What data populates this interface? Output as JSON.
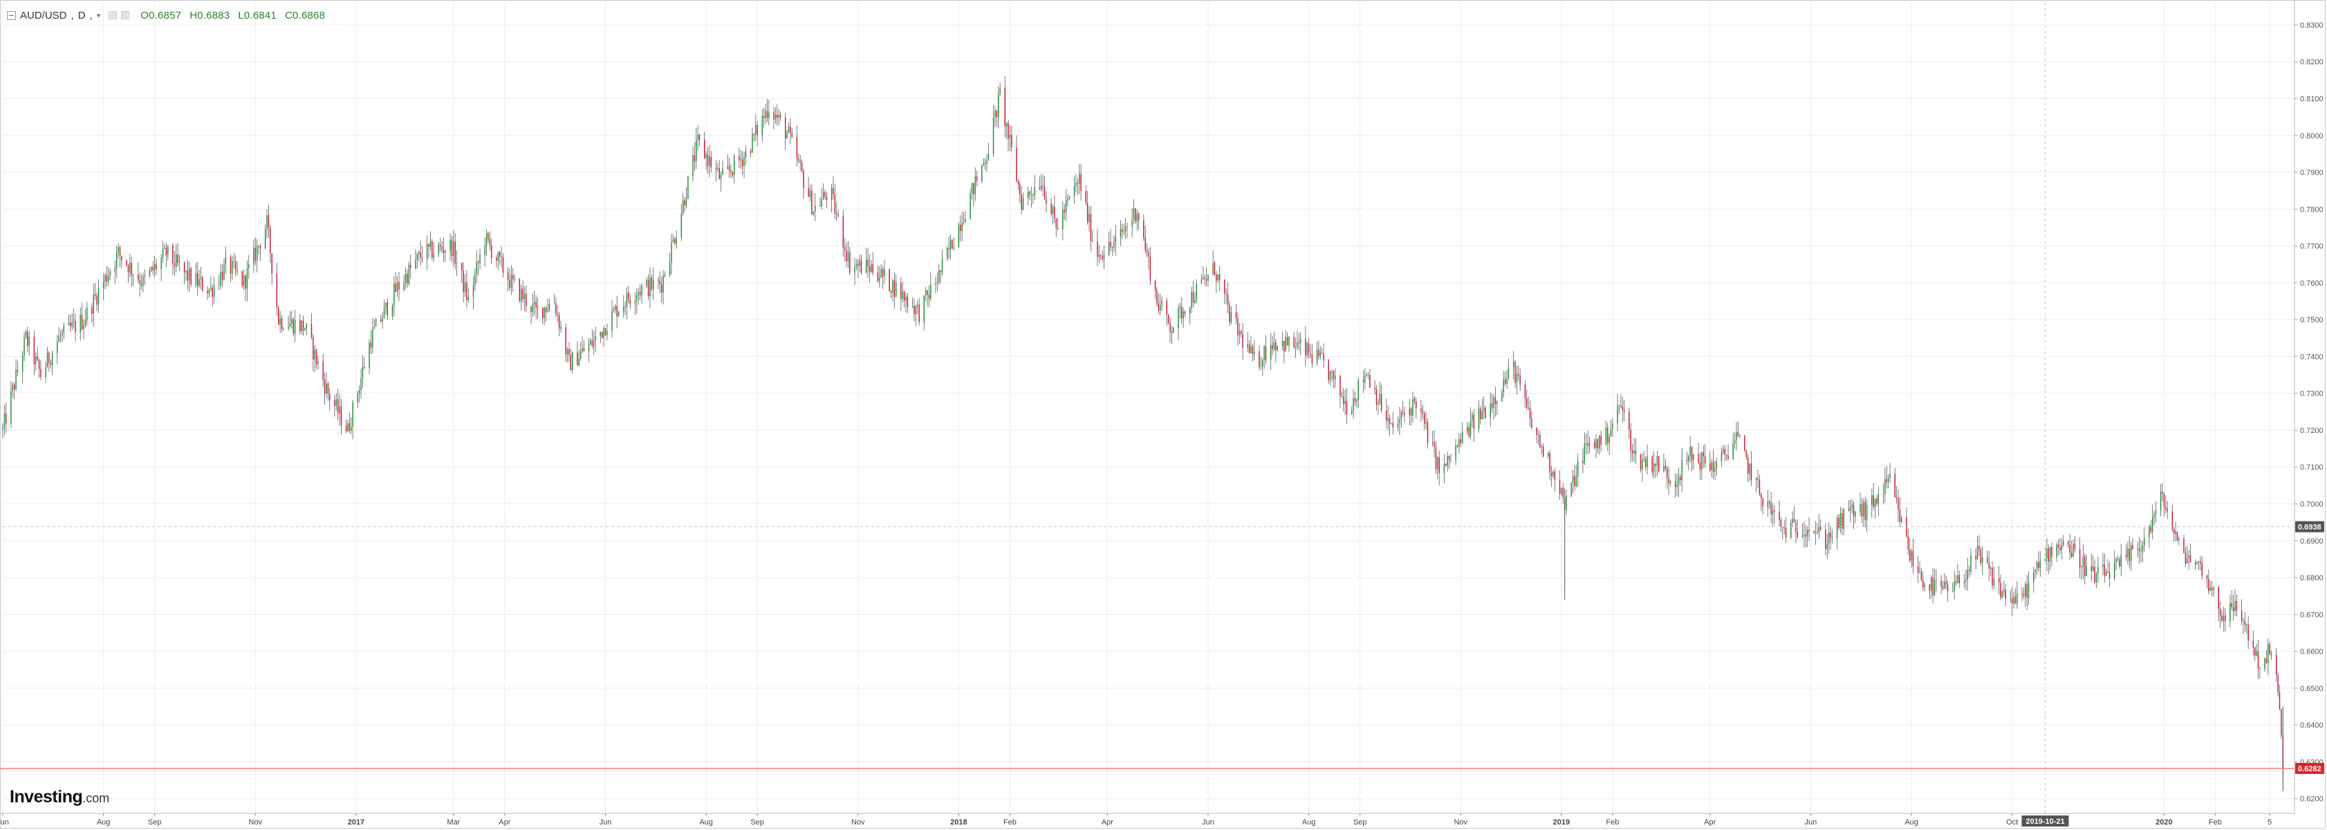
{
  "instrument": {
    "symbol": "AUD/USD",
    "interval": "D",
    "open_label": "O",
    "open": "0.6857",
    "high_label": "H",
    "high": "0.6883",
    "low_label": "L",
    "low": "0.6841",
    "close_label": "C",
    "close": "0.6868"
  },
  "logo": {
    "brand": "Investing",
    "suffix": ".com"
  },
  "colors": {
    "up": "#1b8a2e",
    "down": "#c8102e",
    "wick": "#555555",
    "grid": "#ececec",
    "price_line": "#ff5c5c",
    "crosshair": "#c8c8c8",
    "current_price_bg": "#e02424",
    "crosshair_label_bg": "#555555"
  },
  "chart_data": {
    "type": "candlestick",
    "title": "AUD/USD, D",
    "ylim": [
      0.616,
      0.836
    ],
    "y_ticks": [
      "0.8300",
      "0.8200",
      "0.8100",
      "0.8000",
      "0.7900",
      "0.7800",
      "0.7700",
      "0.7600",
      "0.7500",
      "0.7400",
      "0.7300",
      "0.7200",
      "0.7100",
      "0.7000",
      "0.6900",
      "0.6800",
      "0.6700",
      "0.6600",
      "0.6500",
      "0.6400",
      "0.6300",
      "0.6200"
    ],
    "x_ticks": [
      "Jun",
      "Aug",
      "Sep",
      "Nov",
      "2017",
      "Mar",
      "Apr",
      "Jun",
      "Aug",
      "Sep",
      "Nov",
      "2018",
      "Feb",
      "Apr",
      "Jun",
      "Aug",
      "Sep",
      "Nov",
      "2019",
      "Feb",
      "Apr",
      "Jun",
      "Aug",
      "Oct",
      "2020",
      "Feb",
      "5"
    ],
    "x_tick_dates": [
      "2016-06-01",
      "2016-08-01",
      "2016-09-01",
      "2016-11-01",
      "2017-01-01",
      "2017-03-01",
      "2017-04-01",
      "2017-06-01",
      "2017-08-01",
      "2017-09-01",
      "2017-11-01",
      "2018-01-01",
      "2018-02-01",
      "2018-04-01",
      "2018-06-01",
      "2018-08-01",
      "2018-09-01",
      "2018-11-01",
      "2019-01-01",
      "2019-02-01",
      "2019-04-01",
      "2019-06-01",
      "2019-08-01",
      "2019-10-01",
      "2020-01-01",
      "2020-02-01",
      "2020-03-05"
    ],
    "x_range": [
      "2016-06-01",
      "2020-03-20"
    ],
    "current_price_label": "0.6282",
    "current_price": 0.6282,
    "crosshair_price_label": "0.6938",
    "crosshair_price": 0.6938,
    "crosshair_date_label": "2019-10-21",
    "crosshair_date": "2019-10-21",
    "grid": true,
    "price_path": [
      [
        "2016-06-01",
        0.72
      ],
      [
        "2016-06-15",
        0.745
      ],
      [
        "2016-06-24",
        0.735
      ],
      [
        "2016-07-05",
        0.745
      ],
      [
        "2016-07-20",
        0.75
      ],
      [
        "2016-08-10",
        0.768
      ],
      [
        "2016-08-25",
        0.76
      ],
      [
        "2016-09-08",
        0.768
      ],
      [
        "2016-09-20",
        0.762
      ],
      [
        "2016-10-05",
        0.758
      ],
      [
        "2016-10-15",
        0.765
      ],
      [
        "2016-10-25",
        0.76
      ],
      [
        "2016-11-08",
        0.776
      ],
      [
        "2016-11-15",
        0.75
      ],
      [
        "2016-12-01",
        0.748
      ],
      [
        "2016-12-15",
        0.73
      ],
      [
        "2016-12-27",
        0.72
      ],
      [
        "2017-01-10",
        0.745
      ],
      [
        "2017-01-25",
        0.758
      ],
      [
        "2017-02-10",
        0.768
      ],
      [
        "2017-02-28",
        0.77
      ],
      [
        "2017-03-10",
        0.755
      ],
      [
        "2017-03-20",
        0.772
      ],
      [
        "2017-04-05",
        0.76
      ],
      [
        "2017-04-20",
        0.752
      ],
      [
        "2017-05-01",
        0.755
      ],
      [
        "2017-05-10",
        0.738
      ],
      [
        "2017-05-25",
        0.744
      ],
      [
        "2017-06-08",
        0.753
      ],
      [
        "2017-06-20",
        0.758
      ],
      [
        "2017-07-05",
        0.76
      ],
      [
        "2017-07-15",
        0.776
      ],
      [
        "2017-07-27",
        0.798
      ],
      [
        "2017-08-10",
        0.788
      ],
      [
        "2017-08-25",
        0.795
      ],
      [
        "2017-09-08",
        0.808
      ],
      [
        "2017-09-20",
        0.8
      ],
      [
        "2017-10-05",
        0.78
      ],
      [
        "2017-10-15",
        0.785
      ],
      [
        "2017-10-27",
        0.765
      ],
      [
        "2017-11-10",
        0.764
      ],
      [
        "2017-11-25",
        0.758
      ],
      [
        "2017-12-08",
        0.752
      ],
      [
        "2017-12-20",
        0.762
      ],
      [
        "2018-01-05",
        0.78
      ],
      [
        "2018-01-18",
        0.795
      ],
      [
        "2018-01-26",
        0.811
      ],
      [
        "2018-02-08",
        0.782
      ],
      [
        "2018-02-20",
        0.788
      ],
      [
        "2018-03-01",
        0.775
      ],
      [
        "2018-03-15",
        0.788
      ],
      [
        "2018-03-25",
        0.768
      ],
      [
        "2018-04-05",
        0.77
      ],
      [
        "2018-04-19",
        0.78
      ],
      [
        "2018-05-01",
        0.755
      ],
      [
        "2018-05-10",
        0.748
      ],
      [
        "2018-05-20",
        0.755
      ],
      [
        "2018-06-05",
        0.764
      ],
      [
        "2018-06-15",
        0.75
      ],
      [
        "2018-06-30",
        0.738
      ],
      [
        "2018-07-10",
        0.744
      ],
      [
        "2018-07-25",
        0.743
      ],
      [
        "2018-08-10",
        0.738
      ],
      [
        "2018-08-25",
        0.726
      ],
      [
        "2018-09-05",
        0.736
      ],
      [
        "2018-09-20",
        0.72
      ],
      [
        "2018-10-05",
        0.728
      ],
      [
        "2018-10-20",
        0.708
      ],
      [
        "2018-11-05",
        0.72
      ],
      [
        "2018-11-20",
        0.728
      ],
      [
        "2018-12-03",
        0.737
      ],
      [
        "2018-12-15",
        0.72
      ],
      [
        "2018-12-31",
        0.705
      ],
      [
        "2019-01-03",
        0.699
      ],
      [
        "2019-01-15",
        0.715
      ],
      [
        "2019-01-28",
        0.718
      ],
      [
        "2019-02-06",
        0.727
      ],
      [
        "2019-02-15",
        0.712
      ],
      [
        "2019-02-28",
        0.711
      ],
      [
        "2019-03-10",
        0.706
      ],
      [
        "2019-03-20",
        0.713
      ],
      [
        "2019-04-05",
        0.71
      ],
      [
        "2019-04-17",
        0.718
      ],
      [
        "2019-05-01",
        0.703
      ],
      [
        "2019-05-15",
        0.693
      ],
      [
        "2019-06-01",
        0.694
      ],
      [
        "2019-06-10",
        0.69
      ],
      [
        "2019-06-25",
        0.698
      ],
      [
        "2019-07-05",
        0.698
      ],
      [
        "2019-07-19",
        0.706
      ],
      [
        "2019-08-01",
        0.685
      ],
      [
        "2019-08-10",
        0.678
      ],
      [
        "2019-08-25",
        0.676
      ],
      [
        "2019-09-10",
        0.686
      ],
      [
        "2019-09-25",
        0.676
      ],
      [
        "2019-10-05",
        0.673
      ],
      [
        "2019-10-21",
        0.686
      ],
      [
        "2019-11-01",
        0.69
      ],
      [
        "2019-11-20",
        0.68
      ],
      [
        "2019-12-05",
        0.683
      ],
      [
        "2019-12-20",
        0.69
      ],
      [
        "2019-12-31",
        0.702
      ],
      [
        "2020-01-10",
        0.688
      ],
      [
        "2020-01-25",
        0.682
      ],
      [
        "2020-02-05",
        0.67
      ],
      [
        "2020-02-15",
        0.672
      ],
      [
        "2020-02-28",
        0.656
      ],
      [
        "2020-03-05",
        0.66
      ],
      [
        "2020-03-10",
        0.65
      ],
      [
        "2020-03-13",
        0.6282
      ]
    ]
  }
}
